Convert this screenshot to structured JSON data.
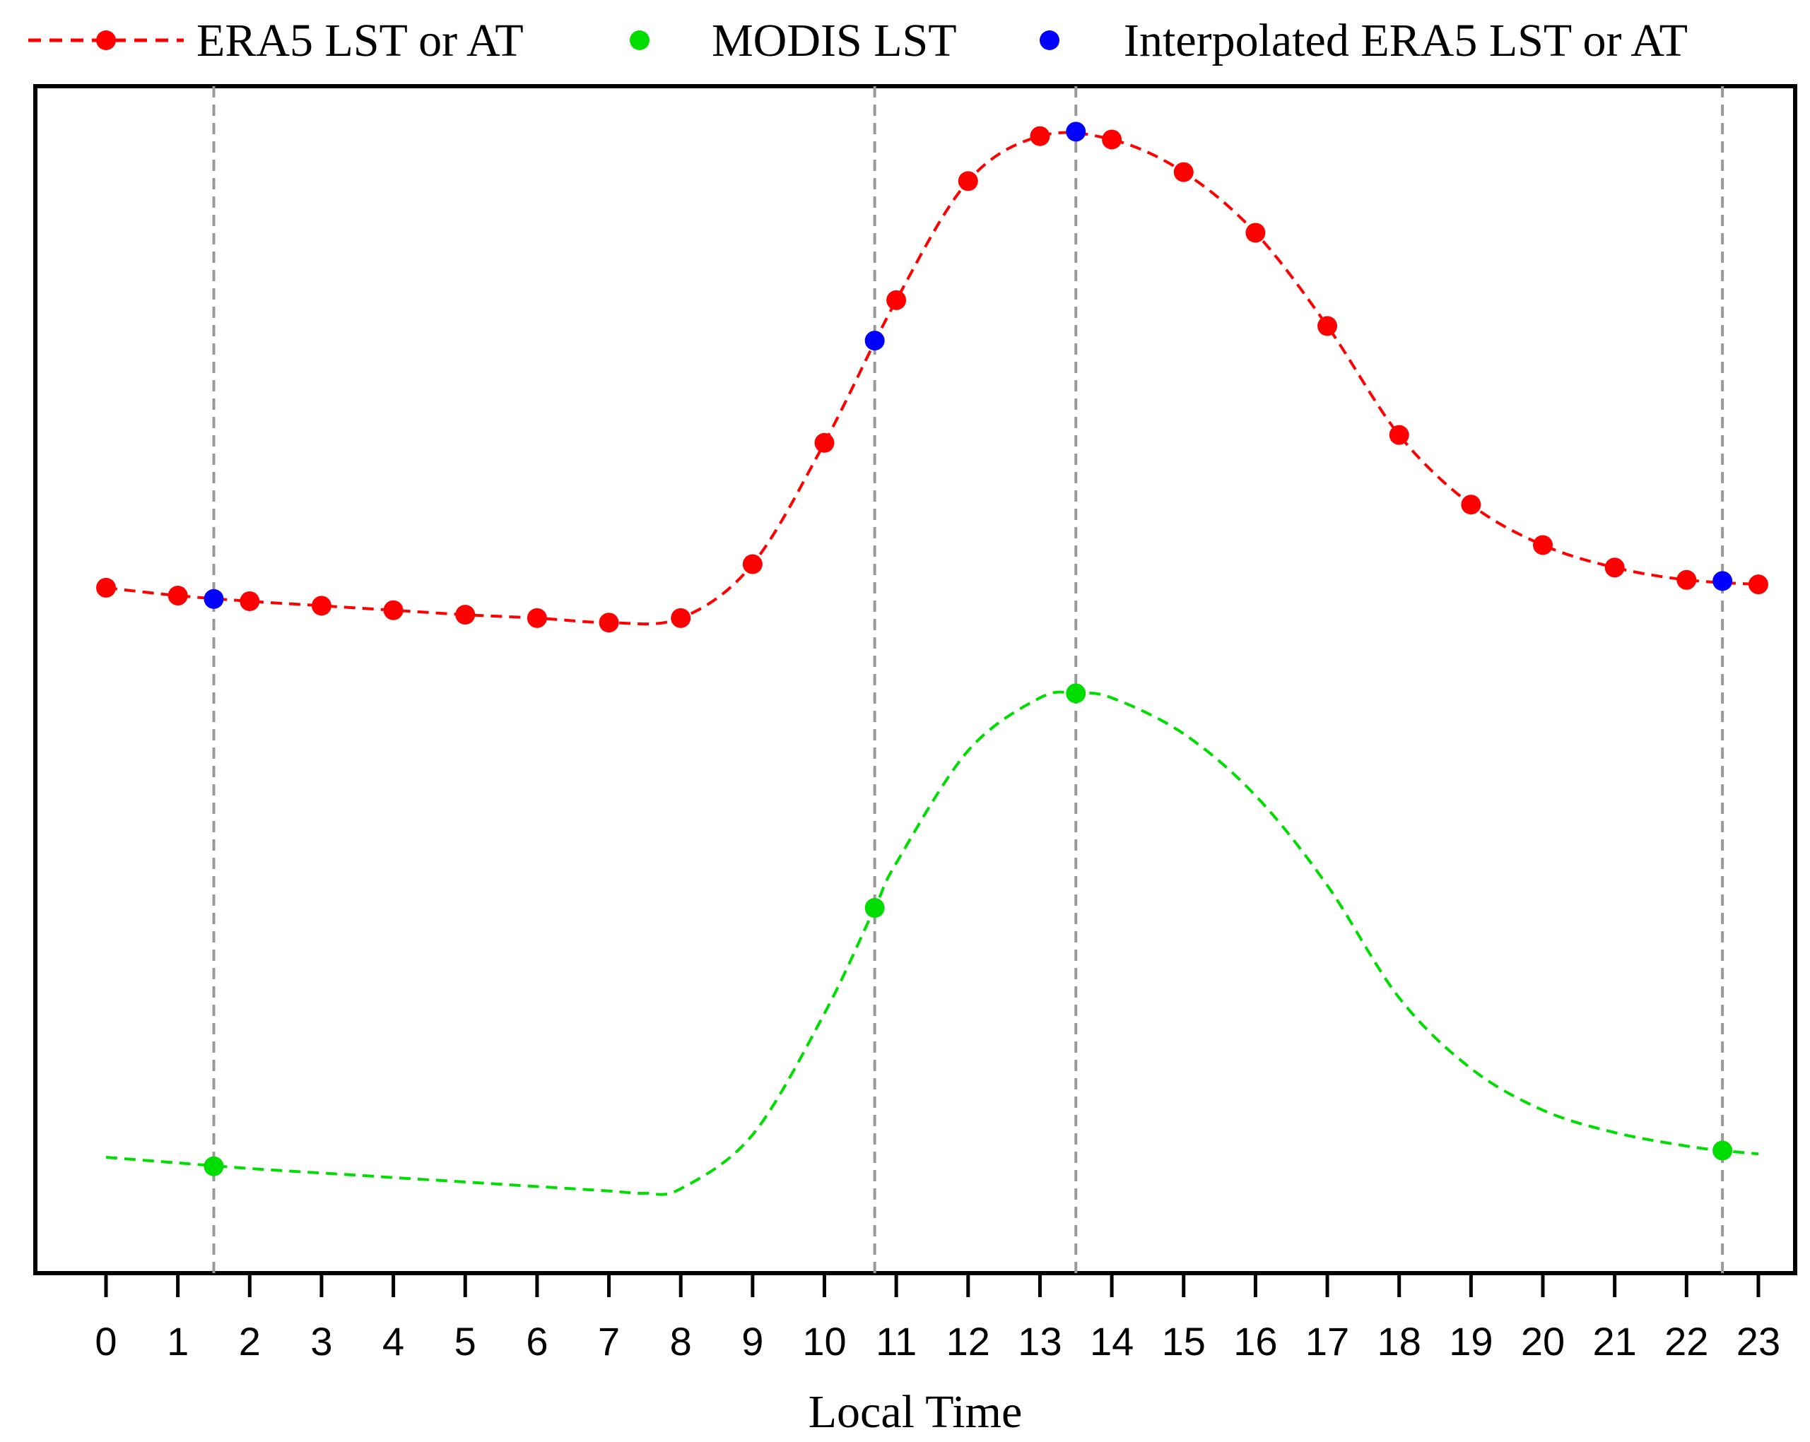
{
  "chart_data": {
    "type": "line",
    "title": "",
    "xlabel": "Local Time",
    "ylabel": "",
    "x_ticks": [
      "0",
      "1",
      "2",
      "3",
      "4",
      "5",
      "6",
      "7",
      "8",
      "9",
      "10",
      "11",
      "12",
      "13",
      "14",
      "15",
      "16",
      "17",
      "18",
      "19",
      "20",
      "21",
      "22",
      "23"
    ],
    "xlim": [
      -0.5,
      23.5
    ],
    "ylim": [
      0,
      100
    ],
    "y_axis_labeled": false,
    "grid": false,
    "legend": {
      "position": "top",
      "entries": [
        "ERA5 LST or AT",
        "MODIS LST",
        "Interpolated ERA5 LST or AT"
      ]
    },
    "vertical_reference_lines": [
      1.5,
      10.7,
      13.5,
      22.5
    ],
    "colors": {
      "era5": "#ff0000",
      "modis": "#00dd00",
      "interpolated": "#0000ff",
      "reference_line": "#999999"
    },
    "series": [
      {
        "name": "ERA5 LST or AT",
        "style": "dashed-line-with-markers",
        "x": [
          0,
          1,
          2,
          3,
          4,
          5,
          6,
          7,
          8,
          9,
          10,
          11,
          12,
          13,
          14,
          15,
          16,
          17,
          18,
          19,
          20,
          21,
          22,
          23
        ],
        "y": [
          59.0,
          58.3,
          57.8,
          57.4,
          57.0,
          56.6,
          56.3,
          55.9,
          56.3,
          61.1,
          71.9,
          84.6,
          95.2,
          99.2,
          98.9,
          96.0,
          90.6,
          82.3,
          72.6,
          66.4,
          62.8,
          60.8,
          59.7,
          59.3
        ]
      },
      {
        "name": "MODIS LST",
        "style": "dashed-curve-with-observations",
        "x": [
          0,
          1,
          2,
          3,
          4,
          5,
          6,
          7,
          7.5,
          8,
          9,
          10,
          10.7,
          11,
          12,
          13,
          13.5,
          14,
          15,
          16,
          17,
          18,
          19,
          20,
          21,
          22,
          22.5,
          23
        ],
        "y": [
          8.3,
          7.8,
          7.3,
          6.9,
          6.5,
          6.1,
          5.7,
          5.3,
          5.1,
          5.5,
          10.3,
          21.1,
          30.5,
          34.5,
          44.5,
          49.2,
          49.6,
          49.2,
          46.0,
          40.5,
          32.5,
          22.5,
          16.2,
          12.5,
          10.5,
          9.3,
          8.9,
          8.6
        ],
        "observed": {
          "x": [
            1.5,
            10.7,
            13.5,
            22.5
          ],
          "y": [
            7.5,
            30.5,
            49.6,
            8.9
          ]
        }
      },
      {
        "name": "Interpolated ERA5 LST or AT",
        "style": "markers",
        "x": [
          1.5,
          10.7,
          13.5,
          22.5
        ],
        "y": [
          58.0,
          81.0,
          99.6,
          59.6
        ]
      }
    ]
  }
}
